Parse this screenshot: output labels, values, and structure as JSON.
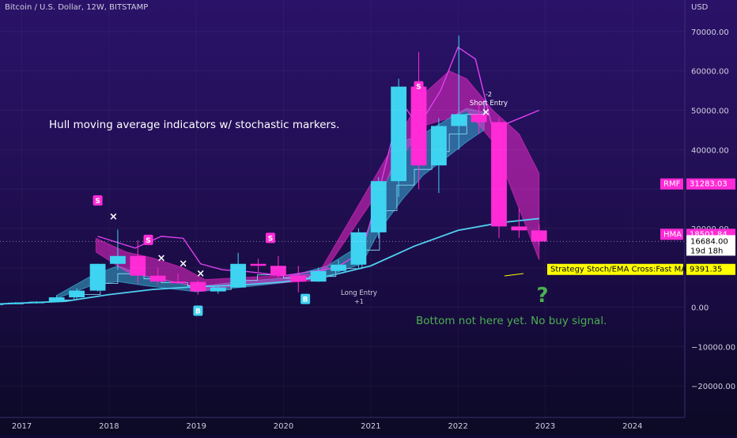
{
  "header": {
    "title": "Bitcoin / U.S. Dollar, 12W, BITSTAMP",
    "currency": "USD"
  },
  "colors": {
    "bull": "#3fd3f2",
    "bear": "#ff2bd6",
    "hma": "#4fd0f0",
    "rmf": "#e040f0",
    "strategy": "#ffff00",
    "note_text": "#ffffff",
    "green": "#4caf50"
  },
  "chart_data": {
    "type": "candlestick",
    "xlim": [
      2016.75,
      2024.6
    ],
    "ylim": [
      -28000,
      78000
    ],
    "y_ticks": [
      70000,
      60000,
      50000,
      40000,
      30000,
      20000,
      10000,
      0,
      -10000,
      -20000
    ],
    "y_tick_labels": [
      "70000.00",
      "60000.00",
      "50000.00",
      "40000.00",
      "",
      "20000.00",
      "10000.00",
      "0.00",
      "−10000.00",
      "−20000.00"
    ],
    "x_ticks": [
      "2017",
      "2018",
      "2019",
      "2020",
      "2021",
      "2022",
      "2023",
      "2024"
    ],
    "x_tick_values": [
      2017,
      2018,
      2019,
      2020,
      2021,
      2022,
      2023,
      2024
    ],
    "candles": [
      {
        "t": 2016.7,
        "o": 700,
        "h": 1000,
        "l": 600,
        "c": 950
      },
      {
        "t": 2016.93,
        "o": 950,
        "h": 1300,
        "l": 850,
        "c": 1150
      },
      {
        "t": 2017.17,
        "o": 1150,
        "h": 1500,
        "l": 900,
        "c": 1400
      },
      {
        "t": 2017.4,
        "o": 1400,
        "h": 3000,
        "l": 1300,
        "c": 2500
      },
      {
        "t": 2017.63,
        "o": 2500,
        "h": 4800,
        "l": 1900,
        "c": 4200
      },
      {
        "t": 2017.87,
        "o": 4200,
        "h": 11000,
        "l": 4000,
        "c": 11000
      },
      {
        "t": 2018.1,
        "o": 11000,
        "h": 19700,
        "l": 9500,
        "c": 13000
      },
      {
        "t": 2018.33,
        "o": 13000,
        "h": 17000,
        "l": 6000,
        "c": 8000
      },
      {
        "t": 2018.56,
        "o": 8000,
        "h": 9900,
        "l": 5800,
        "c": 6500
      },
      {
        "t": 2018.79,
        "o": 6500,
        "h": 8500,
        "l": 5900,
        "c": 6400
      },
      {
        "t": 2019.02,
        "o": 6400,
        "h": 6800,
        "l": 3200,
        "c": 4000
      },
      {
        "t": 2019.25,
        "o": 4000,
        "h": 5200,
        "l": 3400,
        "c": 5000
      },
      {
        "t": 2019.48,
        "o": 5000,
        "h": 13800,
        "l": 4900,
        "c": 11000
      },
      {
        "t": 2019.71,
        "o": 11000,
        "h": 12300,
        "l": 9000,
        "c": 10500
      },
      {
        "t": 2019.94,
        "o": 10500,
        "h": 13000,
        "l": 7400,
        "c": 8000
      },
      {
        "t": 2020.17,
        "o": 8000,
        "h": 10500,
        "l": 3800,
        "c": 6500
      },
      {
        "t": 2020.4,
        "o": 6500,
        "h": 10000,
        "l": 6400,
        "c": 9200
      },
      {
        "t": 2020.63,
        "o": 9200,
        "h": 12000,
        "l": 8800,
        "c": 10800
      },
      {
        "t": 2020.86,
        "o": 10800,
        "h": 20000,
        "l": 10000,
        "c": 19000
      },
      {
        "t": 2021.09,
        "o": 19000,
        "h": 33000,
        "l": 17500,
        "c": 32000
      },
      {
        "t": 2021.32,
        "o": 32000,
        "h": 58000,
        "l": 28000,
        "c": 56000
      },
      {
        "t": 2021.55,
        "o": 56000,
        "h": 64800,
        "l": 30000,
        "c": 36000
      },
      {
        "t": 2021.78,
        "o": 36000,
        "h": 48000,
        "l": 29000,
        "c": 46000
      },
      {
        "t": 2022.01,
        "o": 46000,
        "h": 69000,
        "l": 40000,
        "c": 49000
      },
      {
        "t": 2022.24,
        "o": 49000,
        "h": 52000,
        "l": 44000,
        "c": 47000
      },
      {
        "t": 2022.47,
        "o": 47000,
        "h": 48000,
        "l": 17600,
        "c": 20500
      },
      {
        "t": 2022.7,
        "o": 20500,
        "h": 25000,
        "l": 17600,
        "c": 19500
      },
      {
        "t": 2022.93,
        "o": 19500,
        "h": 21000,
        "l": 15500,
        "c": 16684
      }
    ],
    "hma_line": [
      [
        2016.5,
        600
      ],
      [
        2017.5,
        1500
      ],
      [
        2018.0,
        3200
      ],
      [
        2018.5,
        4500
      ],
      [
        2019.0,
        5200
      ],
      [
        2019.5,
        5600
      ],
      [
        2020.0,
        6400
      ],
      [
        2020.5,
        7800
      ],
      [
        2021.0,
        10500
      ],
      [
        2021.5,
        15500
      ],
      [
        2022.0,
        19500
      ],
      [
        2022.5,
        21500
      ],
      [
        2022.93,
        22500
      ]
    ],
    "rmf_line": [
      [
        2017.87,
        18000
      ],
      [
        2018.3,
        15000
      ],
      [
        2018.6,
        18000
      ],
      [
        2018.85,
        17500
      ],
      [
        2019.05,
        11000
      ],
      [
        2019.3,
        9500
      ],
      [
        2019.6,
        9000
      ],
      [
        2020.0,
        8000
      ],
      [
        2020.3,
        9000
      ],
      [
        2020.6,
        10000
      ],
      [
        2020.9,
        14000
      ],
      [
        2021.1,
        30000
      ],
      [
        2021.35,
        52000
      ],
      [
        2021.55,
        46000
      ],
      [
        2021.8,
        55000
      ],
      [
        2022.0,
        66000
      ],
      [
        2022.2,
        63000
      ],
      [
        2022.4,
        45000
      ],
      [
        2022.6,
        47000
      ],
      [
        2022.93,
        50000
      ]
    ],
    "ribbon_pink": [
      [
        2017.85,
        17500,
        14000
      ],
      [
        2018.2,
        14000,
        9000
      ],
      [
        2018.5,
        12500,
        7500
      ],
      [
        2018.85,
        10000,
        6000
      ],
      [
        2019.1,
        7000,
        4300
      ],
      [
        2019.5,
        7500,
        5500
      ],
      [
        2020.0,
        8000,
        6200
      ],
      [
        2020.4,
        8500,
        6800
      ],
      [
        2021.6,
        54000,
        46000
      ],
      [
        2021.9,
        60000,
        48000
      ],
      [
        2022.1,
        58000,
        50000
      ],
      [
        2022.4,
        50000,
        42000
      ],
      [
        2022.7,
        44000,
        25000
      ],
      [
        2022.93,
        34000,
        12000
      ]
    ],
    "ribbon_cyan": [
      [
        2017.4,
        3000,
        2200
      ],
      [
        2017.8,
        8000,
        5500
      ],
      [
        2018.1,
        10500,
        6500
      ],
      [
        2018.4,
        8000,
        5500
      ],
      [
        2019.0,
        5200,
        3900
      ],
      [
        2019.5,
        6500,
        5000
      ],
      [
        2020.0,
        7400,
        6200
      ],
      [
        2020.5,
        10500,
        8000
      ],
      [
        2020.9,
        16000,
        11000
      ],
      [
        2021.1,
        27000,
        19500
      ],
      [
        2021.35,
        42000,
        27000
      ],
      [
        2021.6,
        44000,
        33500
      ],
      [
        2021.9,
        48000,
        38500
      ],
      [
        2022.1,
        50500,
        42000
      ],
      [
        2022.3,
        49500,
        45000
      ]
    ],
    "step_line": [
      [
        2017.4,
        1800
      ],
      [
        2017.6,
        3200
      ],
      [
        2017.9,
        6000
      ],
      [
        2018.1,
        8500
      ],
      [
        2018.4,
        7200
      ],
      [
        2018.6,
        6200
      ],
      [
        2018.9,
        5400
      ],
      [
        2019.2,
        4500
      ],
      [
        2019.4,
        6800
      ],
      [
        2019.7,
        8200
      ],
      [
        2020.0,
        7400
      ],
      [
        2020.3,
        7800
      ],
      [
        2020.6,
        9800
      ],
      [
        2020.9,
        14500
      ],
      [
        2021.1,
        24500
      ],
      [
        2021.3,
        31000
      ],
      [
        2021.5,
        35000
      ],
      [
        2021.7,
        39500
      ],
      [
        2021.9,
        44000
      ],
      [
        2022.1,
        49000
      ],
      [
        2022.3,
        52500
      ]
    ],
    "markers": {
      "S": [
        [
          2017.87,
          27000
        ],
        [
          2018.45,
          17000
        ],
        [
          2019.85,
          17500
        ],
        [
          2021.55,
          56000
        ]
      ],
      "B": [
        [
          2019.02,
          -1000
        ],
        [
          2020.25,
          2000
        ]
      ],
      "X": [
        [
          2018.05,
          23000
        ],
        [
          2018.6,
          12500
        ],
        [
          2018.85,
          11000
        ],
        [
          2019.05,
          8500
        ],
        [
          2022.32,
          49500
        ]
      ]
    },
    "annotations": {
      "headline": "Hull moving average indicators w/ stochastic markers.",
      "bottom_note": "Bottom not here yet. No buy signal.",
      "question": "?",
      "short_entry": "Short Entry",
      "short_entry_count": "-2",
      "long_entry": "Long Entry",
      "long_entry_count": "+1"
    },
    "badges": {
      "rmf_label": "RMF",
      "rmf_value": "31283.03",
      "hma_label": "HMA",
      "hma_value": "18501.84",
      "price_value": "16684.00",
      "countdown": "19d 18h",
      "strategy_label": "Strategy Stoch/EMA Cross:Fast MA",
      "strategy_value": "9391.35"
    },
    "badge_levels": {
      "rmf": 31283.03,
      "hma": 18501.84,
      "price": 16684,
      "strategy": 9391.35
    }
  }
}
